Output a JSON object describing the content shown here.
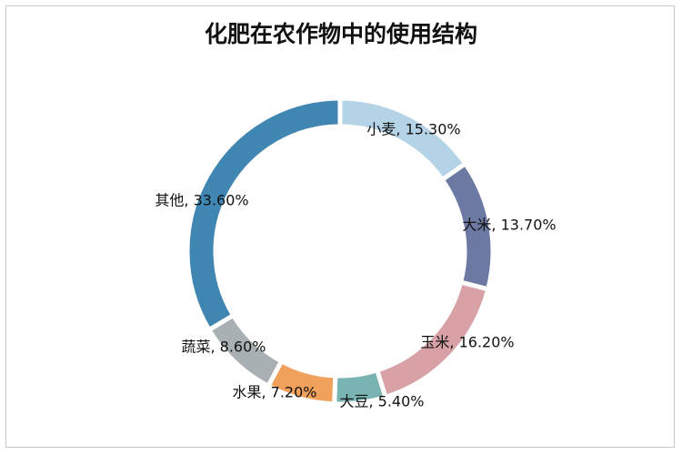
{
  "chart_data": {
    "type": "pie",
    "donut": true,
    "title": "化肥在农作物中的使用结构",
    "slices": [
      {
        "name": "小麦",
        "value": 15.3,
        "label": "小麦, 15.30%",
        "color": "#b5d3e7"
      },
      {
        "name": "大米",
        "value": 13.7,
        "label": "大米, 13.70%",
        "color": "#6c7aa3"
      },
      {
        "name": "玉米",
        "value": 16.2,
        "label": "玉米, 16.20%",
        "color": "#d8a1a6"
      },
      {
        "name": "大豆",
        "value": 5.4,
        "label": "大豆, 5.40%",
        "color": "#79b3b2"
      },
      {
        "name": "水果",
        "value": 7.2,
        "label": "水果, 7.20%",
        "color": "#f2a15c"
      },
      {
        "name": "蔬菜",
        "value": 8.6,
        "label": "蔬菜, 8.60%",
        "color": "#a9b0b3"
      },
      {
        "name": "其他",
        "value": 33.6,
        "label": "其他, 33.60%",
        "color": "#3f86b2"
      }
    ],
    "legend": "none"
  }
}
